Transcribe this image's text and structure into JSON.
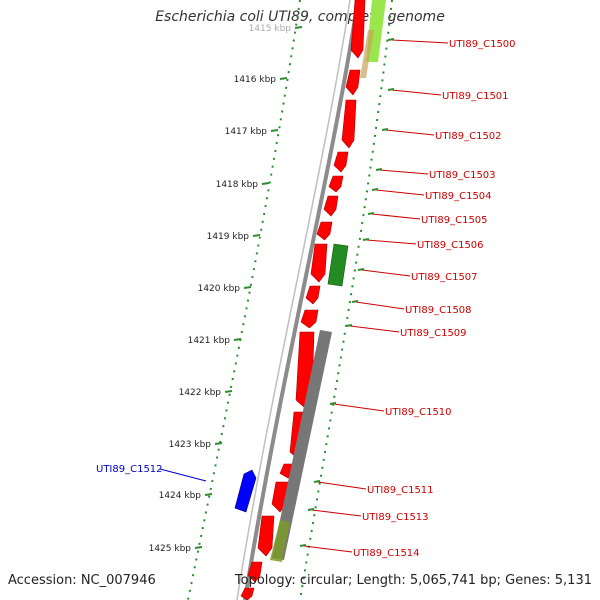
{
  "title": "Escherichia coli UTI89, complete genome",
  "accession": "Accession: NC_007946",
  "summary": "Topology: circular; Length: 5,065,741 bp; Genes: 5,131",
  "colors": {
    "forward_cds": "#ff0000",
    "reverse_cds": "#0000ff",
    "other_feature": "#228b22",
    "backbone": "#8c8c8c",
    "label_forward": "#cc0000",
    "label_reverse": "#0000cc",
    "tick": "#2e8b2e"
  },
  "scale_labels": [
    "1415 kbp",
    "1416 kbp",
    "1417 kbp",
    "1418 kbp",
    "1419 kbp",
    "1420 kbp",
    "1421 kbp",
    "1422 kbp",
    "1423 kbp",
    "1424 kbp",
    "1425 kbp"
  ],
  "right_genes": [
    "UTI89_C1500",
    "UTI89_C1501",
    "UTI89_C1502",
    "UTI89_C1503",
    "UTI89_C1504",
    "UTI89_C1505",
    "UTI89_C1506",
    "UTI89_C1507",
    "UTI89_C1508",
    "UTI89_C1509",
    "UTI89_C1510",
    "UTI89_C1511",
    "UTI89_C1513",
    "UTI89_C1514"
  ],
  "left_genes": [
    "UTI89_C1512"
  ]
}
